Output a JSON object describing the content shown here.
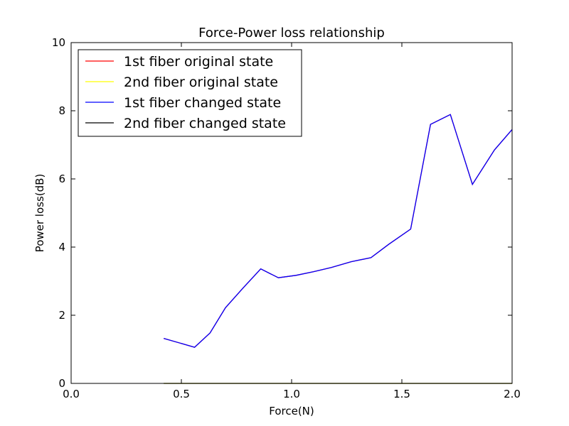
{
  "chart_data": {
    "type": "line",
    "title": "Force-Power loss relationship",
    "xlabel": "Force(N)",
    "ylabel": "Power loss(dB)",
    "xlim": [
      0.0,
      2.0
    ],
    "ylim": [
      0,
      10
    ],
    "xticks": [
      "0.0",
      "0.5",
      "1.0",
      "1.5",
      "2.0"
    ],
    "yticks": [
      "0",
      "2",
      "4",
      "6",
      "8",
      "10"
    ],
    "grid": false,
    "legend_position": "upper-left",
    "series": [
      {
        "name": "1st fiber original state",
        "color": "#ff0000",
        "x": [
          0.42,
          0.56,
          0.63,
          0.7,
          0.78,
          0.86,
          0.94,
          1.02,
          1.1,
          1.18,
          1.27,
          1.36,
          1.44,
          1.54,
          1.63,
          1.72,
          1.82,
          1.92,
          2.0
        ],
        "y": [
          1.32,
          1.06,
          1.48,
          2.22,
          2.8,
          3.36,
          3.1,
          3.17,
          3.28,
          3.4,
          3.57,
          3.69,
          4.08,
          4.53,
          7.6,
          7.89,
          5.84,
          6.85,
          7.45
        ]
      },
      {
        "name": "2nd fiber original state",
        "color": "#ffff00",
        "x": [
          0.42,
          0.56,
          0.63,
          0.7,
          0.78,
          0.86,
          0.94,
          1.02,
          1.1,
          1.18,
          1.27,
          1.36,
          1.44,
          1.54,
          1.63,
          1.72,
          1.82,
          1.92,
          2.0
        ],
        "y": [
          0,
          0,
          0,
          0,
          0,
          0,
          0,
          0,
          0,
          0,
          0,
          0,
          0,
          0,
          0,
          0,
          0,
          0,
          0
        ]
      },
      {
        "name": "1st fiber changed state",
        "color": "#0000ff",
        "x": [
          0.42,
          0.56,
          0.63,
          0.7,
          0.78,
          0.86,
          0.94,
          1.02,
          1.1,
          1.18,
          1.27,
          1.36,
          1.44,
          1.54,
          1.63,
          1.72,
          1.82,
          1.92,
          2.0
        ],
        "y": [
          1.32,
          1.06,
          1.48,
          2.22,
          2.8,
          3.36,
          3.1,
          3.17,
          3.28,
          3.4,
          3.57,
          3.69,
          4.08,
          4.53,
          7.6,
          7.89,
          5.84,
          6.85,
          7.45
        ]
      },
      {
        "name": "2nd fiber changed state",
        "color": "#000000",
        "x": [
          0.42,
          0.56,
          0.63,
          0.7,
          0.78,
          0.86,
          0.94,
          1.02,
          1.1,
          1.18,
          1.27,
          1.36,
          1.44,
          1.54,
          1.63,
          1.72,
          1.82,
          1.92,
          2.0
        ],
        "y": [
          0,
          0,
          0,
          0,
          0,
          0,
          0,
          0,
          0,
          0,
          0,
          0,
          0,
          0,
          0,
          0,
          0,
          0,
          0
        ]
      }
    ]
  }
}
